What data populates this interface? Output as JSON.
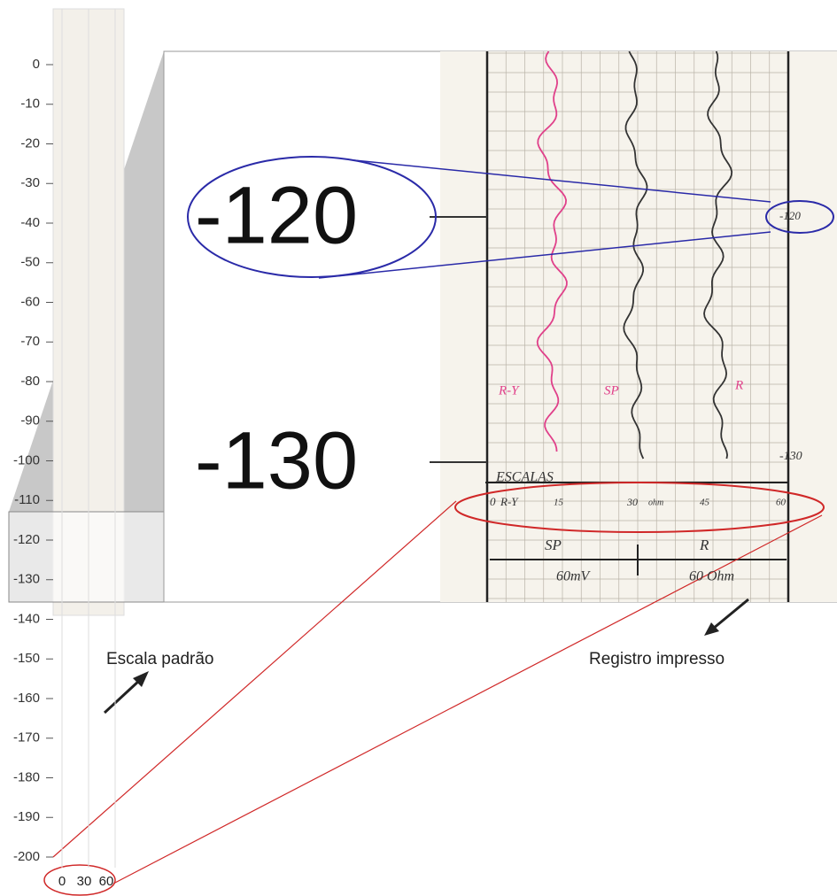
{
  "depth_axis": {
    "labels": [
      0,
      -10,
      -20,
      -30,
      -40,
      -50,
      -60,
      -70,
      -80,
      -90,
      -100,
      -110,
      -120,
      -130,
      -140,
      -150,
      -160,
      -170,
      -180,
      -190,
      -200
    ]
  },
  "strip_scale": [
    0,
    30,
    60
  ],
  "zoom_labels": [
    "-120",
    "-130"
  ],
  "captions": {
    "left": "Escala padrão",
    "right": "Registro impresso"
  },
  "record": {
    "curve_labels": [
      "R-Y",
      "SP",
      "R"
    ],
    "depth_marks": [
      "-120",
      "-130"
    ],
    "scale_title": "ESCALAS",
    "scale_ticks": [
      "0",
      "R-Y",
      "15",
      "30",
      "ohm",
      "45",
      "60"
    ],
    "scale_names": [
      "SP",
      "R"
    ],
    "scale_units": [
      "60mV",
      "60 Ohm"
    ]
  }
}
